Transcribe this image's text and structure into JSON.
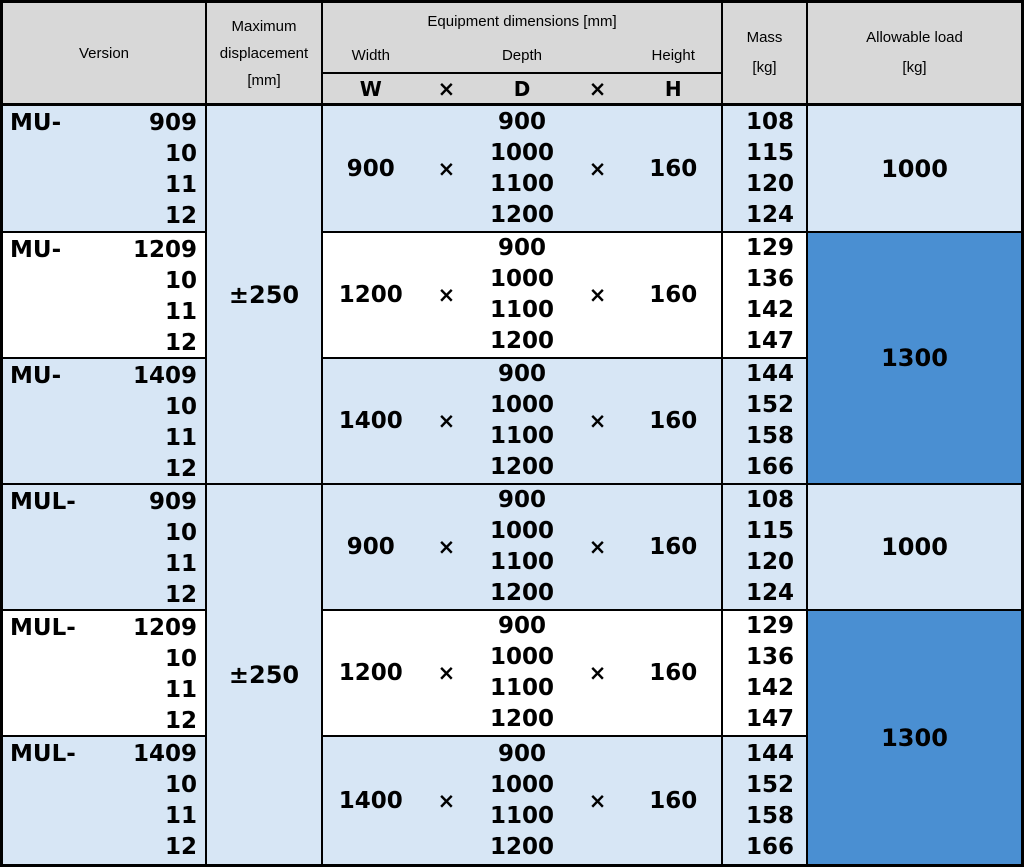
{
  "header": {
    "version": "Version",
    "displacement_lines": [
      "Maximum",
      "displacement",
      "[mm]"
    ],
    "dimensions_title": "Equipment dimensions  [mm]",
    "width_label": "Width",
    "depth_label": "Depth",
    "height_label": "Height",
    "w_label": "W",
    "d_label": "D",
    "h_label": "H",
    "times": "×",
    "mass_line1": "Mass",
    "mass_line2": "[kg]",
    "load_line1": "Allowable load",
    "load_line2": "[kg]"
  },
  "displacement_values": [
    "±250",
    "±250"
  ],
  "load_values": [
    "1000",
    "1300",
    "1000",
    "1300"
  ],
  "blocks": [
    {
      "prefix": "MU-",
      "nums": [
        "909",
        "10",
        "11",
        "12"
      ],
      "w": "900",
      "depths": [
        "900",
        "1000",
        "1100",
        "1200"
      ],
      "h": "160",
      "masses": [
        "108",
        "115",
        "120",
        "124"
      ]
    },
    {
      "prefix": "MU-",
      "nums": [
        "1209",
        "10",
        "11",
        "12"
      ],
      "w": "1200",
      "depths": [
        "900",
        "1000",
        "1100",
        "1200"
      ],
      "h": "160",
      "masses": [
        "129",
        "136",
        "142",
        "147"
      ]
    },
    {
      "prefix": "MU-",
      "nums": [
        "1409",
        "10",
        "11",
        "12"
      ],
      "w": "1400",
      "depths": [
        "900",
        "1000",
        "1100",
        "1200"
      ],
      "h": "160",
      "masses": [
        "144",
        "152",
        "158",
        "166"
      ]
    },
    {
      "prefix": "MUL-",
      "nums": [
        "909",
        "10",
        "11",
        "12"
      ],
      "w": "900",
      "depths": [
        "900",
        "1000",
        "1100",
        "1200"
      ],
      "h": "160",
      "masses": [
        "108",
        "115",
        "120",
        "124"
      ]
    },
    {
      "prefix": "MUL-",
      "nums": [
        "1209",
        "10",
        "11",
        "12"
      ],
      "w": "1200",
      "depths": [
        "900",
        "1000",
        "1100",
        "1200"
      ],
      "h": "160",
      "masses": [
        "129",
        "136",
        "142",
        "147"
      ]
    },
    {
      "prefix": "MUL-",
      "nums": [
        "1409",
        "10",
        "11",
        "12"
      ],
      "w": "1400",
      "depths": [
        "900",
        "1000",
        "1100",
        "1200"
      ],
      "h": "160",
      "masses": [
        "144",
        "152",
        "158",
        "166"
      ]
    }
  ],
  "colors": {
    "header_bg": "#d8d8d8",
    "light_blue": "#d7e6f5",
    "accent_blue": "#4a8fd2",
    "border": "#000000"
  }
}
